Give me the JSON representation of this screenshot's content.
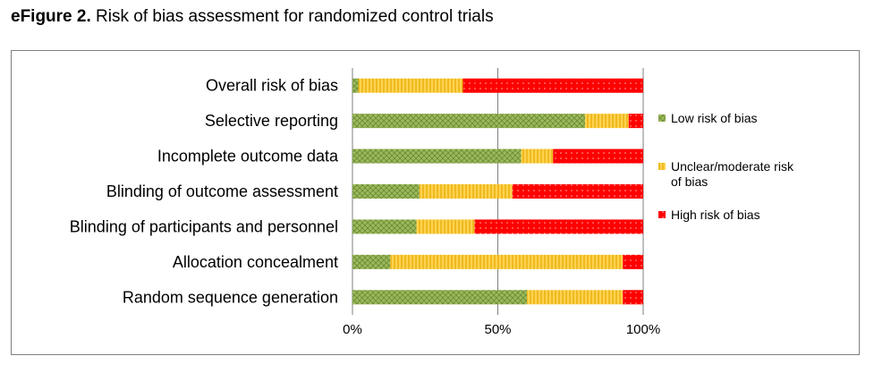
{
  "caption": {
    "label": "eFigure 2.",
    "text": " Risk of bias assessment for randomized control trials"
  },
  "colors": {
    "low": "#9bbb59",
    "unclear": "#ffc000",
    "high": "#ff0000",
    "grid": "#7f7f7f"
  },
  "chart_data": {
    "type": "bar",
    "orientation": "horizontal",
    "stacked": true,
    "title": "Risk of bias assessment for randomized control trials",
    "xlabel": "",
    "ylabel": "",
    "xlim": [
      0,
      100
    ],
    "x_ticks": [
      "0%",
      "50%",
      "100%"
    ],
    "categories": [
      "Overall risk of bias",
      "Selective reporting",
      "Incomplete outcome data",
      "Blinding of outcome assessment",
      "Blinding of participants and personnel",
      "Allocation concealment",
      "Random sequence generation"
    ],
    "series": [
      {
        "name": "Low risk of bias",
        "key": "low",
        "values": [
          2,
          80,
          58,
          23,
          22,
          13,
          60
        ]
      },
      {
        "name": "Unclear/moderate risk of bias",
        "key": "unclear",
        "values": [
          36,
          15,
          11,
          32,
          20,
          80,
          33
        ]
      },
      {
        "name": "High risk of bias",
        "key": "high",
        "values": [
          62,
          5,
          31,
          45,
          58,
          7,
          7
        ]
      }
    ],
    "legend": [
      "Low risk of bias",
      "Unclear/moderate risk of bias",
      "High risk of bias"
    ],
    "legend_position": "right",
    "grid": true
  }
}
